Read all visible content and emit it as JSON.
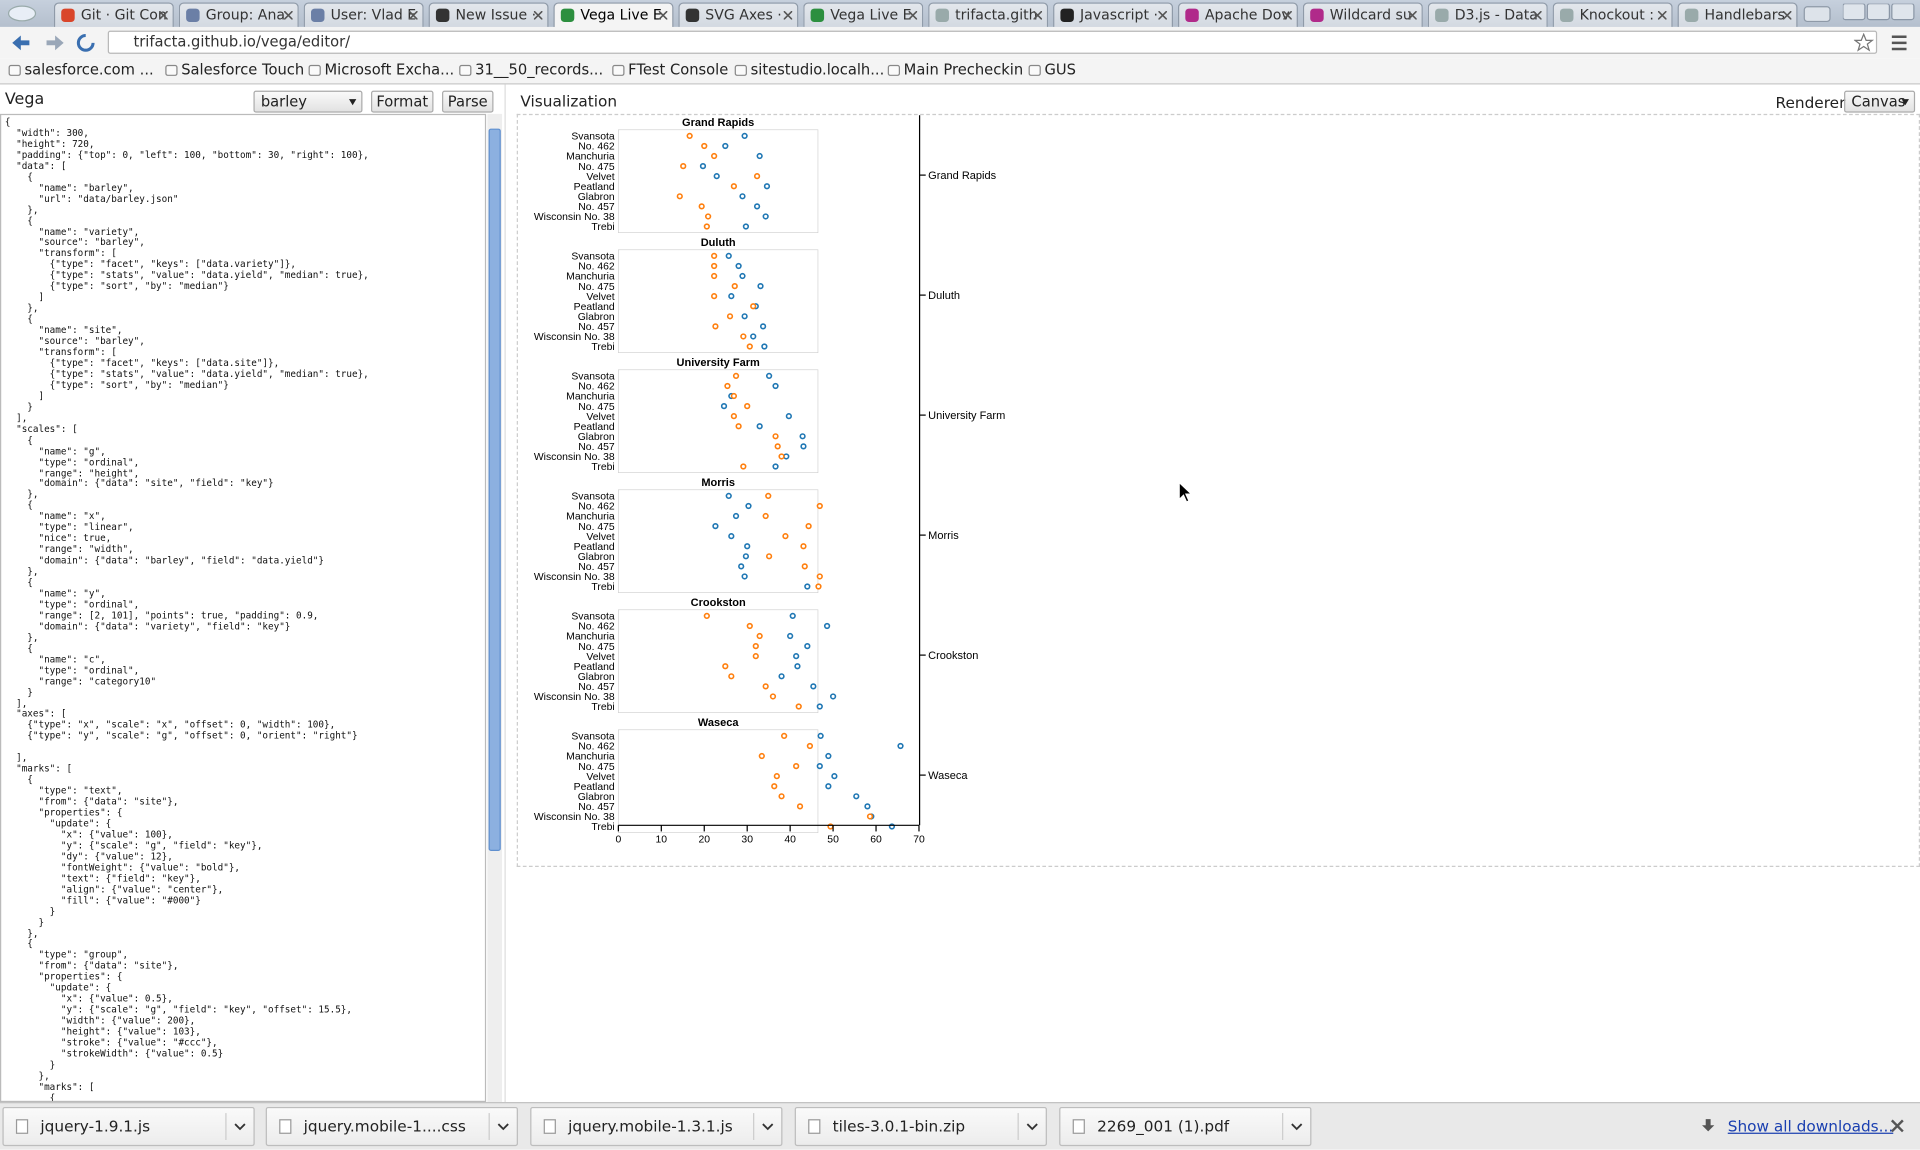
{
  "browser": {
    "tabs": [
      "Git · Git Con",
      "Group: Ana",
      "User: Vlad E",
      "New Issue ·",
      "Vega Live E",
      "SVG Axes ·",
      "Vega Live E",
      "trifacta.gith",
      "Javascript ·",
      "Apache Dov",
      "Wildcard su",
      "D3.js - Data",
      "Knockout :",
      "Handlebars"
    ],
    "url": "trifacta.github.io/vega/editor/",
    "bookmarks": [
      "salesforce.com ...",
      "Salesforce Touch",
      "Microsoft Excha...",
      "31__50_records...",
      "FTest Console",
      "sitestudio.localh...",
      "Main Precheckin",
      "GUS"
    ]
  },
  "editor": {
    "title": "Vega",
    "spec": "barley",
    "buttons": [
      "Format",
      "Parse"
    ],
    "code": "{\n  \"width\": 300,\n  \"height\": 720,\n  \"padding\": {\"top\": 0, \"left\": 100, \"bottom\": 30, \"right\": 100},\n  \"data\": [\n    {\n      \"name\": \"barley\",\n      \"url\": \"data/barley.json\"\n    },\n    {\n      \"name\": \"variety\",\n      \"source\": \"barley\",\n      \"transform\": [\n        {\"type\": \"facet\", \"keys\": [\"data.variety\"]},\n        {\"type\": \"stats\", \"value\": \"data.yield\", \"median\": true},\n        {\"type\": \"sort\", \"by\": \"median\"}\n      ]\n    },\n    {\n      \"name\": \"site\",\n      \"source\": \"barley\",\n      \"transform\": [\n        {\"type\": \"facet\", \"keys\": [\"data.site\"]},\n        {\"type\": \"stats\", \"value\": \"data.yield\", \"median\": true},\n        {\"type\": \"sort\", \"by\": \"median\"}\n      ]\n    }\n  ],\n  \"scales\": [\n    {\n      \"name\": \"g\",\n      \"type\": \"ordinal\",\n      \"range\": \"height\",\n      \"domain\": {\"data\": \"site\", \"field\": \"key\"}\n    },\n    {\n      \"name\": \"x\",\n      \"type\": \"linear\",\n      \"nice\": true,\n      \"range\": \"width\",\n      \"domain\": {\"data\": \"barley\", \"field\": \"data.yield\"}\n    },\n    {\n      \"name\": \"y\",\n      \"type\": \"ordinal\",\n      \"range\": [2, 101], \"points\": true, \"padding\": 0.9,\n      \"domain\": {\"data\": \"variety\", \"field\": \"key\"}\n    },\n    {\n      \"name\": \"c\",\n      \"type\": \"ordinal\",\n      \"range\": \"category10\"\n    }\n  ],\n  \"axes\": [\n    {\"type\": \"x\", \"scale\": \"x\", \"offset\": 0, \"width\": 100},\n    {\"type\": \"y\", \"scale\": \"g\", \"offset\": 0, \"orient\": \"right\"}\n\n  ],\n  \"marks\": [\n    {\n      \"type\": \"text\",\n      \"from\": {\"data\": \"site\"},\n      \"properties\": {\n        \"update\": {\n          \"x\": {\"value\": 100},\n          \"y\": {\"scale\": \"g\", \"field\": \"key\"},\n          \"dy\": {\"value\": 12},\n          \"fontWeight\": {\"value\": \"bold\"},\n          \"text\": {\"field\": \"key\"},\n          \"align\": {\"value\": \"center\"},\n          \"fill\": {\"value\": \"#000\"}\n        }\n      }\n    },\n    {\n      \"type\": \"group\",\n      \"from\": {\"data\": \"site\"},\n      \"properties\": {\n        \"update\": {\n          \"x\": {\"value\": 0.5},\n          \"y\": {\"scale\": \"g\", \"field\": \"key\", \"offset\": 15.5},\n          \"width\": {\"value\": 200},\n          \"height\": {\"value\": 103},\n          \"stroke\": {\"value\": \"#ccc\"},\n          \"strokeWidth\": {\"value\": 0.5}\n        }\n      },\n      \"marks\": [\n        {"
  },
  "visualization": {
    "title": "Visualization",
    "renderer_label": "Renderer",
    "renderer": "Canvas"
  },
  "chart_data": {
    "type": "dot",
    "categories": [
      "Svansota",
      "No. 462",
      "Manchuria",
      "No. 475",
      "Velvet",
      "Peatland",
      "Glabron",
      "No. 457",
      "Wisconsin No. 38",
      "Trebi"
    ],
    "facets": [
      {
        "name": "Grand Rapids",
        "series": [
          {
            "color": "#1f77b4",
            "values": [
              29.4,
              24.9,
              32.9,
              19.7,
              22.9,
              34.6,
              28.9,
              32.3,
              34.3,
              29.7
            ]
          },
          {
            "color": "#ff7f0e",
            "values": [
              16.6,
              20.0,
              22.3,
              15.1,
              32.3,
              26.9,
              14.3,
              19.4,
              20.9,
              20.6
            ]
          }
        ]
      },
      {
        "name": "Duluth",
        "series": [
          {
            "color": "#1f77b4",
            "values": [
              25.7,
              28.0,
              28.9,
              33.1,
              26.3,
              32.0,
              29.4,
              33.7,
              31.4,
              34.0
            ]
          },
          {
            "color": "#ff7f0e",
            "values": [
              22.3,
              22.3,
              22.3,
              27.1,
              22.3,
              31.4,
              26.0,
              22.6,
              29.1,
              30.6
            ]
          }
        ]
      },
      {
        "name": "University Farm",
        "series": [
          {
            "color": "#1f77b4",
            "values": [
              35.1,
              36.6,
              26.3,
              24.6,
              39.7,
              32.9,
              42.9,
              43.1,
              39.1,
              36.6
            ]
          },
          {
            "color": "#ff7f0e",
            "values": [
              27.4,
              25.4,
              26.9,
              30.0,
              26.9,
              28.0,
              36.6,
              37.1,
              38.0,
              29.1
            ]
          }
        ]
      },
      {
        "name": "Morris",
        "series": [
          {
            "color": "#1f77b4",
            "values": [
              25.7,
              30.3,
              27.4,
              22.6,
              26.3,
              30.0,
              29.7,
              28.6,
              29.4,
              44.0
            ]
          },
          {
            "color": "#ff7f0e",
            "values": [
              34.9,
              46.9,
              34.3,
              44.3,
              38.9,
              43.1,
              35.1,
              43.4,
              46.9,
              46.6
            ]
          }
        ]
      },
      {
        "name": "Crookston",
        "series": [
          {
            "color": "#1f77b4",
            "values": [
              40.6,
              48.6,
              40.0,
              44.0,
              41.4,
              41.7,
              38.0,
              45.4,
              50.0,
              46.9
            ]
          },
          {
            "color": "#ff7f0e",
            "values": [
              20.6,
              30.6,
              32.9,
              32.0,
              32.0,
              24.9,
              26.3,
              34.3,
              36.0,
              42.0
            ]
          }
        ]
      },
      {
        "name": "Waseca",
        "series": [
          {
            "color": "#1f77b4",
            "values": [
              47.1,
              65.7,
              48.9,
              46.9,
              50.3,
              48.9,
              55.4,
              58.0,
              58.9,
              63.7
            ]
          },
          {
            "color": "#ff7f0e",
            "values": [
              38.6,
              44.6,
              33.4,
              41.4,
              36.9,
              36.3,
              38.0,
              42.3,
              58.6,
              49.4
            ]
          }
        ]
      }
    ],
    "xlim": [
      0,
      70
    ],
    "xticks": [
      0,
      10,
      20,
      30,
      40,
      50,
      60,
      70
    ]
  },
  "downloads": {
    "files": [
      "jquery-1.9.1.js",
      "jquery.mobile-1....css",
      "jquery.mobile-1.3.1.js",
      "tiles-3.0.1-bin.zip",
      "2269_001 (1).pdf"
    ],
    "show_all": "Show all downloads..."
  }
}
